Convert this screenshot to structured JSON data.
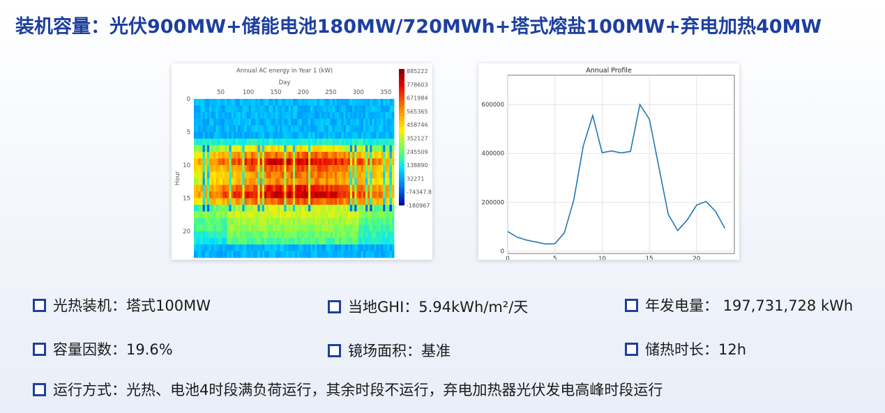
{
  "title": "装机容量：光伏900MW+储能电池180MW/720MWh+塔式熔盐100MW+弃电加热40MW",
  "specs": {
    "csp_install": "光热装机：塔式100MW",
    "ghi": "当地GHI：5.94kWh/m²/天",
    "annual_energy": "年发电量： 197,731,728 kWh",
    "capacity_factor": "容量因数：19.6%",
    "mirror_field": "镜场面积：基准",
    "storage_hours": "储热时长：12h",
    "operation": "运行方式：光热、电池4时段满负荷运行，其余时段不运行，弃电加热器光伏发电高峰时段运行"
  },
  "colors": {
    "title": "#1d3f9e",
    "bullet": "#1d3f9e",
    "line": "#1f77b4"
  },
  "chart_data": [
    {
      "type": "heatmap",
      "title": "Annual AC energy in Year 1 (kW)",
      "xlabel": "Day",
      "ylabel": "Hour",
      "x_ticks": [
        "50",
        "100",
        "150",
        "200",
        "250",
        "300",
        "350"
      ],
      "y_ticks": [
        "0",
        "5",
        "10",
        "15",
        "20"
      ],
      "xlim": [
        1,
        365
      ],
      "ylim": [
        0,
        24
      ],
      "colorbar_ticks": [
        "885222",
        "778603",
        "671984",
        "565365",
        "458746",
        "352127",
        "245509",
        "138890",
        "32271",
        "-74347.8",
        "-180967"
      ],
      "colorbar_range": [
        -180967,
        885222
      ],
      "hourly_profile_relative": [
        0.22,
        0.22,
        0.22,
        0.22,
        0.22,
        0.22,
        0.32,
        0.62,
        0.82,
        0.88,
        0.78,
        0.8,
        0.78,
        0.84,
        0.9,
        0.76,
        0.55,
        0.42,
        0.38,
        0.36,
        0.33,
        0.3,
        0.22,
        0.22
      ]
    },
    {
      "type": "line",
      "title": "Annual Profile",
      "xlabel": "",
      "ylabel": "",
      "x_ticks": [
        "0",
        "5",
        "10",
        "15",
        "20"
      ],
      "y_ticks": [
        "0",
        "200000",
        "400000",
        "600000"
      ],
      "xlim": [
        0,
        24
      ],
      "ylim": [
        -10000,
        720000
      ],
      "x": [
        0,
        1,
        2,
        3,
        4,
        5,
        6,
        7,
        8,
        9,
        10,
        11,
        12,
        13,
        14,
        15,
        16,
        17,
        18,
        19,
        20,
        21,
        22,
        23
      ],
      "values": [
        80000,
        57000,
        45000,
        37000,
        29000,
        30000,
        75000,
        210000,
        430000,
        555000,
        403000,
        410000,
        402000,
        408000,
        600000,
        540000,
        345000,
        150000,
        84000,
        127000,
        188000,
        203000,
        163000,
        93000
      ]
    }
  ]
}
